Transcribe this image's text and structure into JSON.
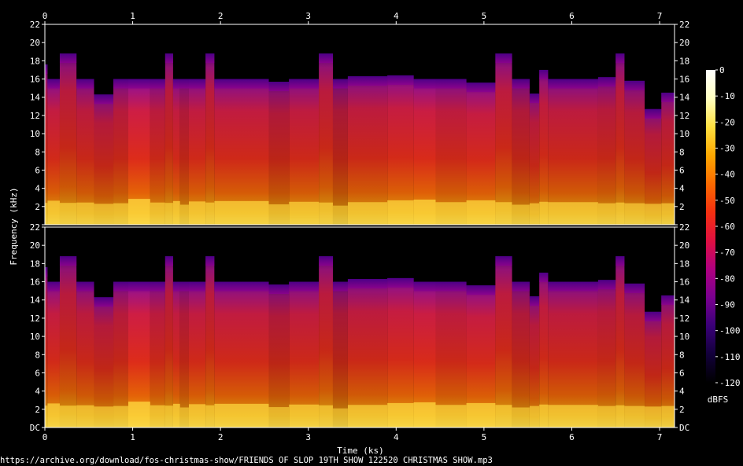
{
  "chart_data": {
    "type": "heatmap",
    "title": "",
    "xlabel": "Time (ks)",
    "ylabel": "Frequency (kHz)",
    "xlim": [
      0,
      7.17
    ],
    "x_ticks": [
      "0",
      "1",
      "2",
      "3",
      "4",
      "5",
      "6",
      "7"
    ],
    "ylim": [
      0,
      22
    ],
    "y_ticks": [
      "DC",
      "2",
      "4",
      "6",
      "8",
      "10",
      "12",
      "14",
      "16",
      "18",
      "20",
      "22"
    ],
    "channels": 2,
    "colorbar": {
      "label": "dBFS",
      "range": [
        -120,
        0
      ],
      "ticks": [
        "0",
        "-10",
        "-20",
        "-30",
        "-40",
        "-50",
        "-60",
        "-70",
        "-80",
        "-90",
        "-100",
        "-110",
        "-120"
      ],
      "colors": [
        "#000000",
        "#12003a",
        "#3a0078",
        "#7a0090",
        "#b00080",
        "#e01040",
        "#f43010",
        "#fb6a00",
        "#fda800",
        "#ffe040",
        "#ffffc0",
        "#ffffff"
      ]
    },
    "segments": [
      {
        "x0": 0.0,
        "x1": 0.03,
        "cutoff": 17.6,
        "level": 0.6
      },
      {
        "x0": 0.03,
        "x1": 0.17,
        "cutoff": 16.0,
        "level": 0.72
      },
      {
        "x0": 0.17,
        "x1": 0.36,
        "cutoff": 18.8,
        "level": 0.6
      },
      {
        "x0": 0.36,
        "x1": 0.56,
        "cutoff": 16.0,
        "level": 0.62
      },
      {
        "x0": 0.56,
        "x1": 0.78,
        "cutoff": 14.3,
        "level": 0.55
      },
      {
        "x0": 0.78,
        "x1": 0.95,
        "cutoff": 16.0,
        "level": 0.58
      },
      {
        "x0": 0.95,
        "x1": 1.2,
        "cutoff": 16.0,
        "level": 0.82
      },
      {
        "x0": 1.2,
        "x1": 1.37,
        "cutoff": 16.0,
        "level": 0.62
      },
      {
        "x0": 1.37,
        "x1": 1.46,
        "cutoff": 18.8,
        "level": 0.6
      },
      {
        "x0": 1.46,
        "x1": 1.54,
        "cutoff": 16.0,
        "level": 0.7
      },
      {
        "x0": 1.54,
        "x1": 1.64,
        "cutoff": 16.0,
        "level": 0.5
      },
      {
        "x0": 1.64,
        "x1": 1.83,
        "cutoff": 16.0,
        "level": 0.68
      },
      {
        "x0": 1.83,
        "x1": 1.93,
        "cutoff": 18.8,
        "level": 0.62
      },
      {
        "x0": 1.93,
        "x1": 2.55,
        "cutoff": 16.0,
        "level": 0.7
      },
      {
        "x0": 2.55,
        "x1": 2.78,
        "cutoff": 15.7,
        "level": 0.52
      },
      {
        "x0": 2.78,
        "x1": 3.12,
        "cutoff": 16.0,
        "level": 0.66
      },
      {
        "x0": 3.12,
        "x1": 3.28,
        "cutoff": 18.8,
        "level": 0.62
      },
      {
        "x0": 3.28,
        "x1": 3.45,
        "cutoff": 16.0,
        "level": 0.45
      },
      {
        "x0": 3.45,
        "x1": 3.9,
        "cutoff": 16.3,
        "level": 0.64
      },
      {
        "x0": 3.9,
        "x1": 4.2,
        "cutoff": 16.4,
        "level": 0.74
      },
      {
        "x0": 4.2,
        "x1": 4.45,
        "cutoff": 16.0,
        "level": 0.78
      },
      {
        "x0": 4.45,
        "x1": 4.8,
        "cutoff": 16.0,
        "level": 0.64
      },
      {
        "x0": 4.8,
        "x1": 5.13,
        "cutoff": 15.6,
        "level": 0.74
      },
      {
        "x0": 5.13,
        "x1": 5.32,
        "cutoff": 18.8,
        "level": 0.64
      },
      {
        "x0": 5.32,
        "x1": 5.52,
        "cutoff": 16.0,
        "level": 0.5
      },
      {
        "x0": 5.52,
        "x1": 5.63,
        "cutoff": 14.4,
        "level": 0.58
      },
      {
        "x0": 5.63,
        "x1": 5.73,
        "cutoff": 17.0,
        "level": 0.66
      },
      {
        "x0": 5.73,
        "x1": 6.3,
        "cutoff": 16.0,
        "level": 0.64
      },
      {
        "x0": 6.3,
        "x1": 6.5,
        "cutoff": 16.2,
        "level": 0.58
      },
      {
        "x0": 6.5,
        "x1": 6.6,
        "cutoff": 18.8,
        "level": 0.62
      },
      {
        "x0": 6.6,
        "x1": 6.83,
        "cutoff": 15.8,
        "level": 0.58
      },
      {
        "x0": 6.83,
        "x1": 7.02,
        "cutoff": 12.7,
        "level": 0.55
      },
      {
        "x0": 7.02,
        "x1": 7.17,
        "cutoff": 14.5,
        "level": 0.58
      }
    ]
  },
  "footer": {
    "source_url": "https://archive.org/download/fos-christmas-show/FRIENDS OF SLOP 19TH SHOW 122520  CHRISTMAS SHOW.mp3"
  }
}
